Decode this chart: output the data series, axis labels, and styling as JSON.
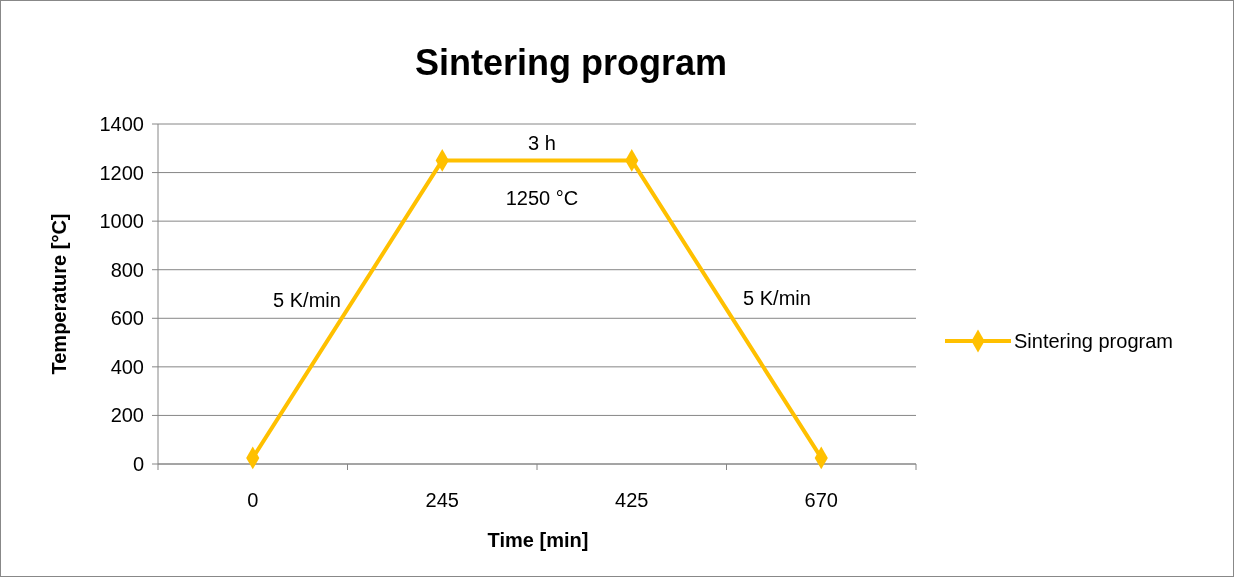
{
  "chart_data": {
    "type": "line",
    "title": "Sintering program",
    "xlabel": "Time [min]",
    "ylabel": "Temperature [°C]",
    "categories": [
      "0",
      "245",
      "425",
      "670"
    ],
    "series": [
      {
        "name": "Sintering program",
        "color": "#ffc000",
        "values": [
          25,
          1250,
          1250,
          25
        ]
      }
    ],
    "ylim": [
      0,
      1400
    ],
    "yticks": [
      0,
      200,
      400,
      600,
      800,
      1000,
      1200,
      1400
    ],
    "grid": "y",
    "legend": "right",
    "marker": "diamond",
    "line_style": "solid",
    "annotations": [
      "3 h",
      "1250 °C",
      "5 K/min",
      "5 K/min"
    ]
  }
}
